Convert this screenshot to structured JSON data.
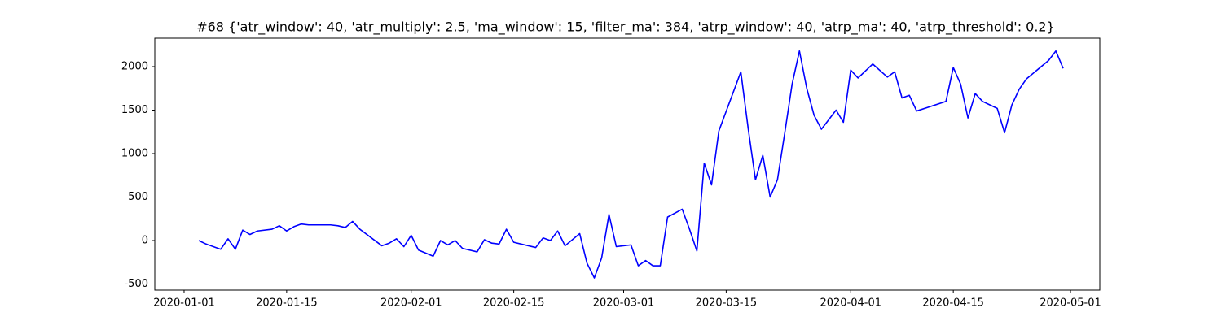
{
  "chart_data": {
    "type": "line",
    "title": "#68 {'atr_window': 40, 'atr_multiply': 2.5, 'ma_window': 15, 'filter_ma': 384, 'atrp_window': 40, 'atrp_ma': 40, 'atrp_threshold': 0.2}",
    "x": [
      "2020-01-03",
      "2020-01-04",
      "2020-01-06",
      "2020-01-07",
      "2020-01-08",
      "2020-01-09",
      "2020-01-10",
      "2020-01-11",
      "2020-01-13",
      "2020-01-14",
      "2020-01-15",
      "2020-01-16",
      "2020-01-17",
      "2020-01-18",
      "2020-01-21",
      "2020-01-22",
      "2020-01-23",
      "2020-01-24",
      "2020-01-25",
      "2020-01-28",
      "2020-01-29",
      "2020-01-30",
      "2020-01-31",
      "2020-02-01",
      "2020-02-02",
      "2020-02-04",
      "2020-02-05",
      "2020-02-06",
      "2020-02-07",
      "2020-02-08",
      "2020-02-10",
      "2020-02-11",
      "2020-02-12",
      "2020-02-13",
      "2020-02-14",
      "2020-02-15",
      "2020-02-18",
      "2020-02-19",
      "2020-02-20",
      "2020-02-21",
      "2020-02-22",
      "2020-02-24",
      "2020-02-25",
      "2020-02-26",
      "2020-02-27",
      "2020-02-28",
      "2020-02-29",
      "2020-03-02",
      "2020-03-03",
      "2020-03-04",
      "2020-03-05",
      "2020-03-06",
      "2020-03-07",
      "2020-03-09",
      "2020-03-10",
      "2020-03-11",
      "2020-03-12",
      "2020-03-13",
      "2020-03-14",
      "2020-03-17",
      "2020-03-18",
      "2020-03-19",
      "2020-03-20",
      "2020-03-21",
      "2020-03-22",
      "2020-03-23",
      "2020-03-24",
      "2020-03-25",
      "2020-03-26",
      "2020-03-27",
      "2020-03-28",
      "2020-03-30",
      "2020-03-31",
      "2020-04-01",
      "2020-04-02",
      "2020-04-04",
      "2020-04-06",
      "2020-04-07",
      "2020-04-08",
      "2020-04-09",
      "2020-04-10",
      "2020-04-14",
      "2020-04-15",
      "2020-04-16",
      "2020-04-17",
      "2020-04-18",
      "2020-04-19",
      "2020-04-21",
      "2020-04-22",
      "2020-04-23",
      "2020-04-24",
      "2020-04-25",
      "2020-04-28",
      "2020-04-29",
      "2020-04-30"
    ],
    "series": [
      {
        "color": "blue",
        "values": [
          0,
          -40,
          -100,
          20,
          -100,
          120,
          70,
          110,
          130,
          170,
          110,
          160,
          190,
          180,
          180,
          170,
          150,
          220,
          130,
          -60,
          -30,
          20,
          -70,
          60,
          -110,
          -180,
          0,
          -50,
          0,
          -90,
          -130,
          10,
          -30,
          -40,
          130,
          -20,
          -80,
          30,
          0,
          110,
          -60,
          80,
          -260,
          -430,
          -200,
          300,
          -70,
          -50,
          -290,
          -230,
          -290,
          -290,
          270,
          360,
          130,
          -120,
          890,
          640,
          1260,
          1940,
          1290,
          700,
          980,
          500,
          700,
          1240,
          1800,
          2180,
          1750,
          1440,
          1280,
          1500,
          1360,
          1960,
          1870,
          2030,
          1880,
          1940,
          1640,
          1670,
          1490,
          1600,
          1990,
          1800,
          1410,
          1690,
          1600,
          1520,
          1240,
          1560,
          1740,
          1860,
          2070,
          2180,
          1980
        ]
      }
    ],
    "xlim": [
      "2019-12-28",
      "2020-05-05"
    ],
    "xticks": [
      "2020-01-01",
      "2020-01-15",
      "2020-02-01",
      "2020-02-15",
      "2020-03-01",
      "2020-03-15",
      "2020-04-01",
      "2020-04-15",
      "2020-05-01"
    ],
    "ylim": [
      -570,
      2327
    ],
    "yticks": [
      -500,
      0,
      500,
      1000,
      1500,
      2000
    ]
  }
}
